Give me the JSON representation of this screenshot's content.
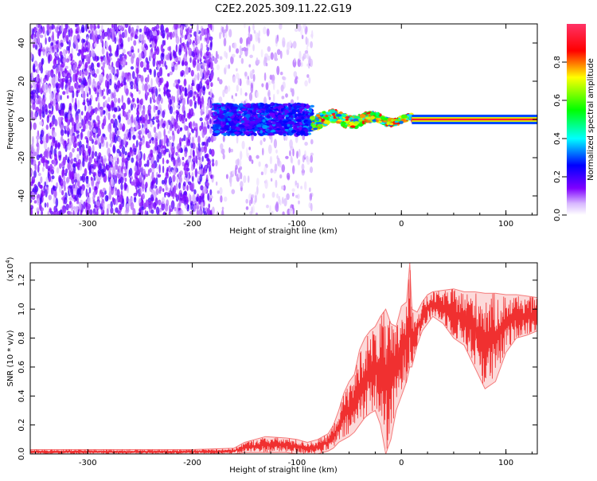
{
  "figure_title": "C2E2.2025.309.11.22.G19",
  "chart_data": [
    {
      "type": "heatmap",
      "title": "C2E2.2025.309.11.22.G19",
      "xlabel": "Height of straight line (km)",
      "ylabel": "Frequency (Hz)",
      "xlim": [
        -355,
        130
      ],
      "ylim": [
        -50,
        50
      ],
      "xticks": [
        -300,
        -200,
        -100,
        0,
        100
      ],
      "xtick_labels": [
        "-300",
        "-200",
        "-100",
        "0",
        "100"
      ],
      "yticks": [
        -40,
        -20,
        0,
        20,
        40
      ],
      "ytick_labels": [
        "-40",
        "-20",
        "0",
        "20",
        "40"
      ],
      "colorbar": {
        "label": "Normalized spectral amplitude",
        "range": [
          0,
          1
        ],
        "ticks": [
          0.0,
          0.2,
          0.4,
          0.6,
          0.8
        ],
        "tick_labels": [
          "0.0",
          "0.2",
          "0.4",
          "0.6",
          "0.8"
        ],
        "colormap": [
          "#ffffff",
          "#7f00ff",
          "#0000ff",
          "#00ffff",
          "#00ff00",
          "#ffff00",
          "#ff0000",
          "#ff0080"
        ]
      },
      "regions": [
        {
          "name": "scattered noise",
          "x_range": [
            -355,
            -180
          ],
          "freq_range": [
            -50,
            50
          ],
          "amplitude": [
            0.05,
            0.2
          ]
        },
        {
          "name": "sparse noise",
          "x_range": [
            -180,
            -85
          ],
          "freq_range": [
            -50,
            50
          ],
          "amplitude": [
            0.02,
            0.1
          ]
        },
        {
          "name": "signal onset",
          "x_range": [
            -180,
            -85
          ],
          "freq_range": [
            -8,
            8
          ],
          "amplitude": [
            0.15,
            0.35
          ]
        },
        {
          "name": "tightening signal",
          "x_range": [
            -85,
            10
          ],
          "freq_range": [
            -4,
            4
          ],
          "amplitude": [
            0.3,
            0.9
          ]
        },
        {
          "name": "clean tone",
          "x_range": [
            10,
            130
          ],
          "freq_range": [
            -1.5,
            1.5
          ],
          "amplitude": [
            0.9,
            1.0
          ]
        }
      ]
    },
    {
      "type": "line",
      "title": "",
      "xlabel": "Height of straight line (km)",
      "ylabel": "SNR (10 * v/v)",
      "scale_label": "(x10",
      "scale_exponent": "4",
      "scale_suffix": ")",
      "xlim": [
        -355,
        130
      ],
      "ylim": [
        0,
        1.32
      ],
      "xticks": [
        -300,
        -200,
        -100,
        0,
        100
      ],
      "xtick_labels": [
        "-300",
        "-200",
        "-100",
        "0",
        "100"
      ],
      "yticks": [
        0.0,
        0.2,
        0.4,
        0.6,
        0.8,
        1.0,
        1.2
      ],
      "ytick_labels": [
        "0.0",
        "0.2",
        "0.4",
        "0.6",
        "0.8",
        "1.0",
        "1.2"
      ],
      "line_color": "#f03030",
      "series": [
        {
          "name": "SNR upper envelope",
          "x": [
            -355,
            -300,
            -200,
            -160,
            -150,
            -130,
            -110,
            -100,
            -90,
            -80,
            -70,
            -65,
            -60,
            -55,
            -50,
            -45,
            -40,
            -35,
            -30,
            -25,
            -20,
            -15,
            -10,
            -5,
            0,
            5,
            8,
            10,
            15,
            20,
            25,
            30,
            40,
            50,
            60,
            70,
            80,
            90,
            100,
            110,
            120,
            130
          ],
          "values": [
            0.03,
            0.03,
            0.03,
            0.04,
            0.08,
            0.12,
            0.11,
            0.1,
            0.08,
            0.1,
            0.14,
            0.2,
            0.3,
            0.42,
            0.5,
            0.55,
            0.72,
            0.8,
            0.85,
            0.88,
            0.95,
            1.0,
            0.9,
            0.88,
            1.02,
            1.05,
            1.32,
            1.0,
            0.98,
            1.05,
            1.1,
            1.12,
            1.13,
            1.14,
            1.12,
            1.12,
            1.11,
            1.11,
            1.1,
            1.1,
            1.09,
            1.08
          ]
        },
        {
          "name": "SNR lower envelope",
          "x": [
            -355,
            -300,
            -200,
            -160,
            -150,
            -130,
            -110,
            -100,
            -90,
            -80,
            -70,
            -65,
            -60,
            -55,
            -50,
            -45,
            -40,
            -35,
            -30,
            -25,
            -20,
            -15,
            -10,
            -5,
            0,
            5,
            8,
            10,
            15,
            20,
            25,
            30,
            40,
            50,
            60,
            70,
            80,
            90,
            100,
            110,
            120,
            130
          ],
          "values": [
            0.0,
            0.0,
            0.0,
            0.0,
            0.01,
            0.01,
            0.01,
            0.0,
            0.0,
            0.0,
            0.02,
            0.04,
            0.08,
            0.1,
            0.12,
            0.15,
            0.2,
            0.25,
            0.28,
            0.3,
            0.2,
            0.0,
            0.1,
            0.3,
            0.4,
            0.5,
            0.6,
            0.6,
            0.75,
            0.85,
            0.9,
            0.95,
            0.9,
            0.8,
            0.75,
            0.6,
            0.45,
            0.5,
            0.7,
            0.8,
            0.82,
            0.85
          ]
        }
      ]
    }
  ]
}
